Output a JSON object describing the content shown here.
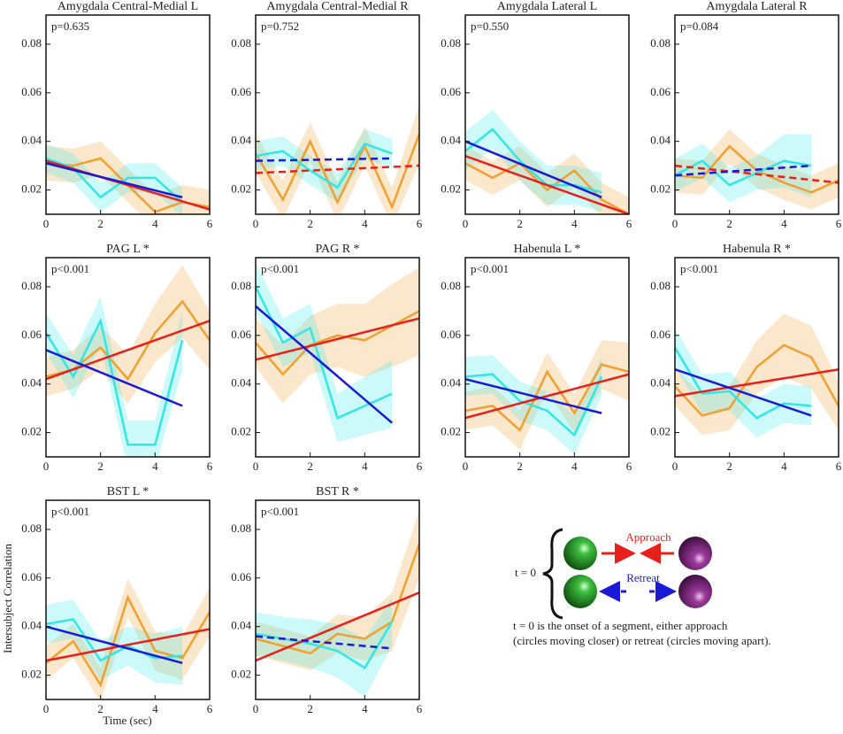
{
  "chart_data": [
    {
      "type": "line",
      "title": "Amygdala Central-Medial L",
      "annotation": "p=0.635",
      "xlim": [
        0,
        6
      ],
      "xticks": [
        0,
        2,
        4,
        6
      ],
      "ylim": [
        0.01,
        0.092
      ],
      "yticks": [
        0.02,
        0.04,
        0.06,
        0.08
      ],
      "series": [
        {
          "color": "#f0a030",
          "x": [
            0,
            1,
            2,
            3,
            4,
            5,
            6
          ],
          "values": [
            0.031,
            0.03,
            0.033,
            0.022,
            0.011,
            0.015,
            0.013
          ],
          "error": [
            0.007,
            0.007,
            0.007,
            0.007,
            0.007,
            0.007,
            0.007
          ]
        },
        {
          "color": "#33e6e6",
          "x": [
            0,
            1,
            2,
            3,
            4,
            5
          ],
          "values": [
            0.033,
            0.029,
            0.017,
            0.025,
            0.025,
            0.015
          ],
          "error": [
            0.006,
            0.006,
            0.006,
            0.006,
            0.006,
            0.006
          ]
        },
        {
          "color": "#e8201c",
          "x": [
            0,
            6
          ],
          "values": [
            0.032,
            0.012
          ],
          "dashed": false
        },
        {
          "color": "#1a1ad6",
          "x": [
            0,
            5
          ],
          "values": [
            0.031,
            0.017
          ],
          "dashed": false
        }
      ]
    },
    {
      "type": "line",
      "title": "Amygdala Central-Medial R",
      "annotation": "p=0.752",
      "xlim": [
        0,
        6
      ],
      "xticks": [
        0,
        2,
        4,
        6
      ],
      "ylim": [
        0.01,
        0.092
      ],
      "yticks": [
        0.02,
        0.04,
        0.06,
        0.08
      ],
      "series": [
        {
          "color": "#f0a030",
          "x": [
            0,
            1,
            2,
            3,
            4,
            5,
            6
          ],
          "values": [
            0.035,
            0.016,
            0.04,
            0.015,
            0.038,
            0.013,
            0.043
          ],
          "error": [
            0.008,
            0.008,
            0.008,
            0.008,
            0.008,
            0.008,
            0.012
          ]
        },
        {
          "color": "#33e6e6",
          "x": [
            0,
            1,
            2,
            3,
            4,
            5
          ],
          "values": [
            0.034,
            0.036,
            0.028,
            0.021,
            0.039,
            0.035
          ],
          "error": [
            0.006,
            0.006,
            0.006,
            0.006,
            0.006,
            0.006
          ]
        },
        {
          "color": "#e8201c",
          "x": [
            0,
            6
          ],
          "values": [
            0.027,
            0.03
          ],
          "dashed": true
        },
        {
          "color": "#1a1ad6",
          "x": [
            0,
            5
          ],
          "values": [
            0.032,
            0.033
          ],
          "dashed": true
        }
      ]
    },
    {
      "type": "line",
      "title": "Amygdala Lateral L",
      "annotation": "p=0.550",
      "xlim": [
        0,
        6
      ],
      "xticks": [
        0,
        2,
        4,
        6
      ],
      "ylim": [
        0.01,
        0.092
      ],
      "yticks": [
        0.02,
        0.04,
        0.06,
        0.08
      ],
      "series": [
        {
          "color": "#f0a030",
          "x": [
            0,
            1,
            2,
            3,
            4,
            5,
            6
          ],
          "values": [
            0.031,
            0.025,
            0.031,
            0.02,
            0.028,
            0.016,
            0.01
          ],
          "error": [
            0.007,
            0.007,
            0.007,
            0.007,
            0.007,
            0.007,
            0.007
          ]
        },
        {
          "color": "#33e6e6",
          "x": [
            0,
            1,
            2,
            3,
            4,
            5
          ],
          "values": [
            0.036,
            0.045,
            0.032,
            0.022,
            0.022,
            0.019
          ],
          "error": [
            0.008,
            0.008,
            0.008,
            0.008,
            0.008,
            0.008
          ]
        },
        {
          "color": "#e8201c",
          "x": [
            0,
            6
          ],
          "values": [
            0.034,
            0.01
          ],
          "dashed": false
        },
        {
          "color": "#1a1ad6",
          "x": [
            0,
            5
          ],
          "values": [
            0.04,
            0.017
          ],
          "dashed": false
        }
      ]
    },
    {
      "type": "line",
      "title": "Amygdala Lateral R",
      "annotation": "p=0.084",
      "xlim": [
        0,
        6
      ],
      "xticks": [
        0,
        2,
        4,
        6
      ],
      "ylim": [
        0.01,
        0.092
      ],
      "yticks": [
        0.02,
        0.04,
        0.06,
        0.08
      ],
      "series": [
        {
          "color": "#f0a030",
          "x": [
            0,
            1,
            2,
            3,
            4,
            5,
            6
          ],
          "values": [
            0.026,
            0.025,
            0.038,
            0.028,
            0.023,
            0.019,
            0.024
          ],
          "error": [
            0.007,
            0.007,
            0.007,
            0.007,
            0.007,
            0.007,
            0.007
          ]
        },
        {
          "color": "#33e6e6",
          "x": [
            0,
            1,
            2,
            3,
            4,
            5
          ],
          "values": [
            0.026,
            0.032,
            0.022,
            0.027,
            0.032,
            0.03
          ],
          "error": [
            0.007,
            0.007,
            0.007,
            0.007,
            0.011,
            0.013
          ]
        },
        {
          "color": "#e8201c",
          "x": [
            0,
            6
          ],
          "values": [
            0.03,
            0.023
          ],
          "dashed": true
        },
        {
          "color": "#1a1ad6",
          "x": [
            0,
            5
          ],
          "values": [
            0.026,
            0.03
          ],
          "dashed": true
        }
      ]
    },
    {
      "type": "line",
      "title": "PAG L *",
      "annotation": "p<0.001",
      "xlim": [
        0,
        6
      ],
      "xticks": [
        0,
        2,
        4,
        6
      ],
      "ylim": [
        0.01,
        0.092
      ],
      "yticks": [
        0.02,
        0.04,
        0.06,
        0.08
      ],
      "series": [
        {
          "color": "#f0a030",
          "x": [
            0,
            1,
            2,
            3,
            4,
            5,
            6
          ],
          "values": [
            0.043,
            0.046,
            0.055,
            0.042,
            0.061,
            0.074,
            0.058
          ],
          "error": [
            0.008,
            0.008,
            0.009,
            0.01,
            0.012,
            0.015,
            0.012
          ]
        },
        {
          "color": "#33e6e6",
          "x": [
            0,
            1,
            2,
            3,
            4,
            5
          ],
          "values": [
            0.061,
            0.043,
            0.066,
            0.015,
            0.015,
            0.058
          ],
          "error": [
            0.008,
            0.009,
            0.01,
            0.01,
            0.01,
            0.012
          ]
        },
        {
          "color": "#e8201c",
          "x": [
            0,
            6
          ],
          "values": [
            0.042,
            0.066
          ],
          "dashed": false
        },
        {
          "color": "#1a1ad6",
          "x": [
            0,
            5
          ],
          "values": [
            0.054,
            0.031
          ],
          "dashed": false
        }
      ]
    },
    {
      "type": "line",
      "title": "PAG R *",
      "annotation": "p<0.001",
      "xlim": [
        0,
        6
      ],
      "xticks": [
        0,
        2,
        4,
        6
      ],
      "ylim": [
        0.01,
        0.092
      ],
      "yticks": [
        0.02,
        0.04,
        0.06,
        0.08
      ],
      "series": [
        {
          "color": "#f0a030",
          "x": [
            0,
            1,
            2,
            3,
            4,
            5,
            6
          ],
          "values": [
            0.057,
            0.044,
            0.056,
            0.06,
            0.058,
            0.064,
            0.07
          ],
          "error": [
            0.01,
            0.012,
            0.012,
            0.013,
            0.015,
            0.017,
            0.018
          ]
        },
        {
          "color": "#33e6e6",
          "x": [
            0,
            1,
            2,
            3,
            4,
            5
          ],
          "values": [
            0.08,
            0.057,
            0.063,
            0.026,
            0.031,
            0.036
          ],
          "error": [
            0.01,
            0.01,
            0.01,
            0.01,
            0.012,
            0.014
          ]
        },
        {
          "color": "#e8201c",
          "x": [
            0,
            6
          ],
          "values": [
            0.05,
            0.067
          ],
          "dashed": false
        },
        {
          "color": "#1a1ad6",
          "x": [
            0,
            5
          ],
          "values": [
            0.072,
            0.024
          ],
          "dashed": false
        }
      ]
    },
    {
      "type": "line",
      "title": "Habenula L *",
      "annotation": "p<0.001",
      "xlim": [
        0,
        6
      ],
      "xticks": [
        0,
        2,
        4,
        6
      ],
      "ylim": [
        0.01,
        0.092
      ],
      "yticks": [
        0.02,
        0.04,
        0.06,
        0.08
      ],
      "series": [
        {
          "color": "#f0a030",
          "x": [
            0,
            1,
            2,
            3,
            4,
            5,
            6
          ],
          "values": [
            0.029,
            0.031,
            0.021,
            0.045,
            0.028,
            0.048,
            0.045
          ],
          "error": [
            0.008,
            0.008,
            0.008,
            0.008,
            0.008,
            0.01,
            0.012
          ]
        },
        {
          "color": "#33e6e6",
          "x": [
            0,
            1,
            2,
            3,
            4,
            5
          ],
          "values": [
            0.043,
            0.044,
            0.033,
            0.029,
            0.019,
            0.043
          ],
          "error": [
            0.008,
            0.008,
            0.008,
            0.008,
            0.008,
            0.008
          ]
        },
        {
          "color": "#e8201c",
          "x": [
            0,
            6
          ],
          "values": [
            0.026,
            0.044
          ],
          "dashed": false
        },
        {
          "color": "#1a1ad6",
          "x": [
            0,
            5
          ],
          "values": [
            0.042,
            0.028
          ],
          "dashed": false
        }
      ]
    },
    {
      "type": "line",
      "title": "Habenula R *",
      "annotation": "p<0.001",
      "xlim": [
        0,
        6
      ],
      "xticks": [
        0,
        2,
        4,
        6
      ],
      "ylim": [
        0.01,
        0.092
      ],
      "yticks": [
        0.02,
        0.04,
        0.06,
        0.08
      ],
      "series": [
        {
          "color": "#f0a030",
          "x": [
            0,
            1,
            2,
            3,
            4,
            5,
            6
          ],
          "values": [
            0.039,
            0.027,
            0.03,
            0.047,
            0.056,
            0.051,
            0.031
          ],
          "error": [
            0.008,
            0.008,
            0.009,
            0.011,
            0.013,
            0.013,
            0.01
          ]
        },
        {
          "color": "#33e6e6",
          "x": [
            0,
            1,
            2,
            3,
            4,
            5
          ],
          "values": [
            0.055,
            0.036,
            0.037,
            0.026,
            0.032,
            0.031
          ],
          "error": [
            0.008,
            0.008,
            0.008,
            0.008,
            0.008,
            0.008
          ]
        },
        {
          "color": "#e8201c",
          "x": [
            0,
            6
          ],
          "values": [
            0.035,
            0.046
          ],
          "dashed": false
        },
        {
          "color": "#1a1ad6",
          "x": [
            0,
            5
          ],
          "values": [
            0.046,
            0.027
          ],
          "dashed": false
        }
      ]
    },
    {
      "type": "line",
      "title": "BST L *",
      "annotation": "p<0.001",
      "xlim": [
        0,
        6
      ],
      "xticks": [
        0,
        2,
        4,
        6
      ],
      "ylim": [
        0.01,
        0.092
      ],
      "yticks": [
        0.02,
        0.04,
        0.06,
        0.08
      ],
      "series": [
        {
          "color": "#f0a030",
          "x": [
            0,
            1,
            2,
            3,
            4,
            5,
            6
          ],
          "values": [
            0.025,
            0.034,
            0.016,
            0.052,
            0.03,
            0.027,
            0.046
          ],
          "error": [
            0.007,
            0.007,
            0.007,
            0.008,
            0.008,
            0.009,
            0.01
          ]
        },
        {
          "color": "#33e6e6",
          "x": [
            0,
            1,
            2,
            3,
            4,
            5
          ],
          "values": [
            0.041,
            0.043,
            0.026,
            0.032,
            0.027,
            0.028
          ],
          "error": [
            0.008,
            0.008,
            0.008,
            0.008,
            0.01,
            0.012
          ]
        },
        {
          "color": "#e8201c",
          "x": [
            0,
            6
          ],
          "values": [
            0.026,
            0.039
          ],
          "dashed": false
        },
        {
          "color": "#1a1ad6",
          "x": [
            0,
            5
          ],
          "values": [
            0.04,
            0.025
          ],
          "dashed": false
        }
      ]
    },
    {
      "type": "line",
      "title": "BST R *",
      "annotation": "p<0.001",
      "xlim": [
        0,
        6
      ],
      "xticks": [
        0,
        2,
        4,
        6
      ],
      "ylim": [
        0.01,
        0.092
      ],
      "yticks": [
        0.02,
        0.04,
        0.06,
        0.08
      ],
      "series": [
        {
          "color": "#f0a030",
          "x": [
            0,
            1,
            2,
            3,
            4,
            5,
            6
          ],
          "values": [
            0.035,
            0.032,
            0.029,
            0.037,
            0.035,
            0.042,
            0.074
          ],
          "error": [
            0.007,
            0.007,
            0.007,
            0.008,
            0.009,
            0.012,
            0.014
          ]
        },
        {
          "color": "#33e6e6",
          "x": [
            0,
            1,
            2,
            3,
            4,
            5
          ],
          "values": [
            0.037,
            0.035,
            0.033,
            0.03,
            0.023,
            0.042
          ],
          "error": [
            0.009,
            0.009,
            0.01,
            0.011,
            0.012,
            0.01
          ]
        },
        {
          "color": "#e8201c",
          "x": [
            0,
            6
          ],
          "values": [
            0.026,
            0.054
          ],
          "dashed": false
        },
        {
          "color": "#1a1ad6",
          "x": [
            0,
            5
          ],
          "values": [
            0.036,
            0.031
          ],
          "dashed": true
        }
      ]
    }
  ],
  "figure": {
    "ylabel": "Intersubject Correlation",
    "xlabel": "Time (sec)"
  },
  "legend": {
    "t0": "t = 0",
    "approach": "Approach",
    "retreat": "Retreat",
    "caption": [
      "t = 0 is the onset of a segment, either approach",
      "(circles moving closer) or retreat (circles moving apart)."
    ]
  }
}
